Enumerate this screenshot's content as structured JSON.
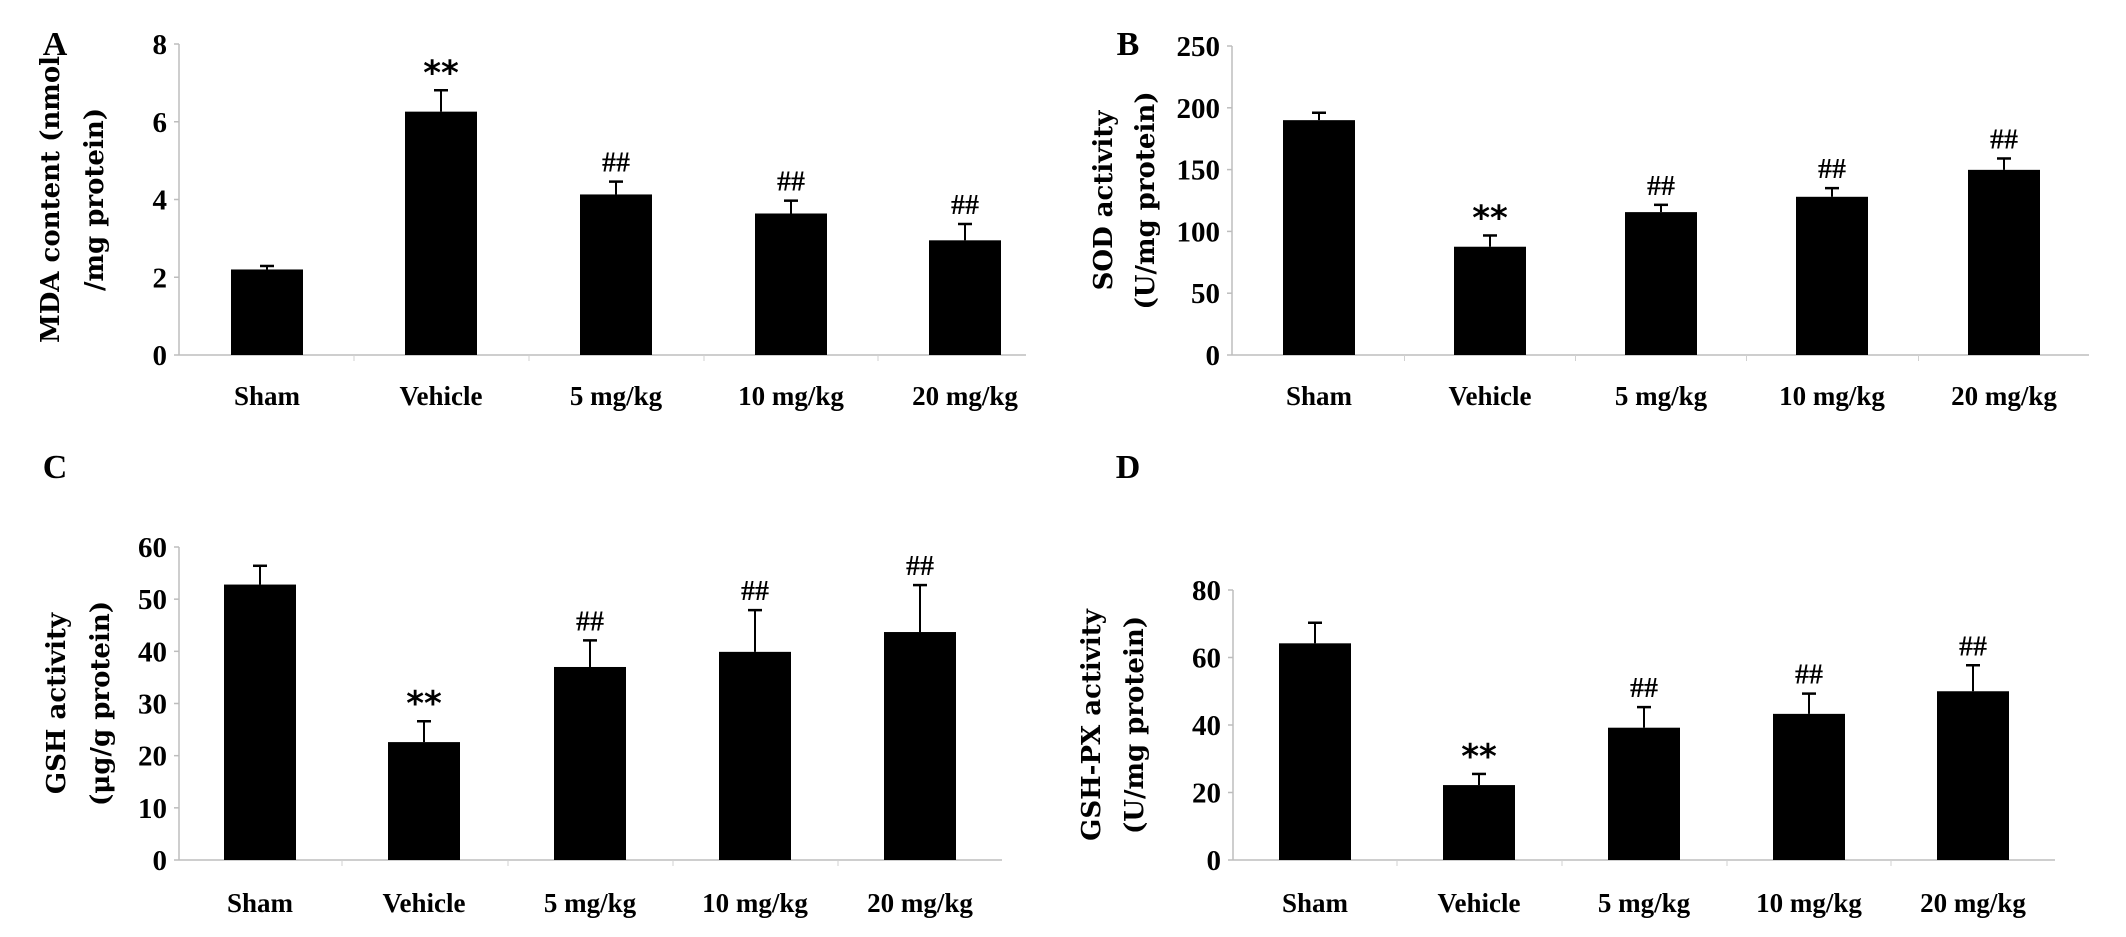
{
  "chart_data": [
    {
      "type": "bar",
      "panel_label": "A",
      "ylabel_lines": [
        "MDA content (nmol",
        "/mg protein)"
      ],
      "categories": [
        "Sham",
        "Vehicle",
        "5 mg/kg",
        "10 mg/kg",
        "20 mg/kg"
      ],
      "values": [
        2.2,
        6.26,
        4.13,
        3.64,
        2.95
      ],
      "error_upper": [
        2.29,
        6.81,
        4.46,
        3.97,
        3.37
      ],
      "annotations": [
        "",
        "**",
        "##",
        "##",
        "##"
      ],
      "ylim": [
        0,
        8
      ],
      "yticks": [
        0,
        2,
        4,
        6,
        8
      ],
      "bar_color": "#000000"
    },
    {
      "type": "bar",
      "panel_label": "B",
      "ylabel_lines": [
        "SOD activity",
        "(U/mg protein)"
      ],
      "categories": [
        "Sham",
        "Vehicle",
        "5 mg/kg",
        "10 mg/kg",
        "20 mg/kg"
      ],
      "values": [
        190,
        87.6,
        115.6,
        128,
        149.8
      ],
      "error_upper": [
        196,
        96.7,
        121.5,
        135,
        159
      ],
      "annotations": [
        "",
        "**",
        "##",
        "##",
        "##"
      ],
      "ylim": [
        0,
        250
      ],
      "yticks": [
        0,
        50,
        100,
        150,
        200,
        250
      ],
      "bar_color": "#000000"
    },
    {
      "type": "bar",
      "panel_label": "C",
      "ylabel_lines": [
        "GSH activity",
        "(μg/g protein)"
      ],
      "categories": [
        "Sham",
        "Vehicle",
        "5 mg/kg",
        "10 mg/kg",
        "20 mg/kg"
      ],
      "values": [
        52.8,
        22.6,
        37.0,
        39.9,
        43.7
      ],
      "error_upper": [
        56.4,
        26.6,
        42.1,
        47.9,
        52.7
      ],
      "annotations": [
        "",
        "**",
        "##",
        "##",
        "##"
      ],
      "ylim": [
        0,
        60
      ],
      "yticks": [
        0,
        10,
        20,
        30,
        40,
        50,
        60
      ],
      "bar_color": "#000000"
    },
    {
      "type": "bar",
      "panel_label": "D",
      "ylabel_lines": [
        "GSH-PX activity",
        "(U/mg protein)"
      ],
      "categories": [
        "Sham",
        "Vehicle",
        "5 mg/kg",
        "10 mg/kg",
        "20 mg/kg"
      ],
      "values": [
        64.2,
        22.2,
        39.2,
        43.3,
        50.0
      ],
      "error_upper": [
        70.3,
        25.5,
        45.3,
        49.3,
        57.7
      ],
      "annotations": [
        "",
        "**",
        "##",
        "##",
        "##"
      ],
      "ylim": [
        0,
        80
      ],
      "yticks": [
        0,
        20,
        40,
        60,
        80
      ],
      "bar_color": "#000000"
    }
  ]
}
